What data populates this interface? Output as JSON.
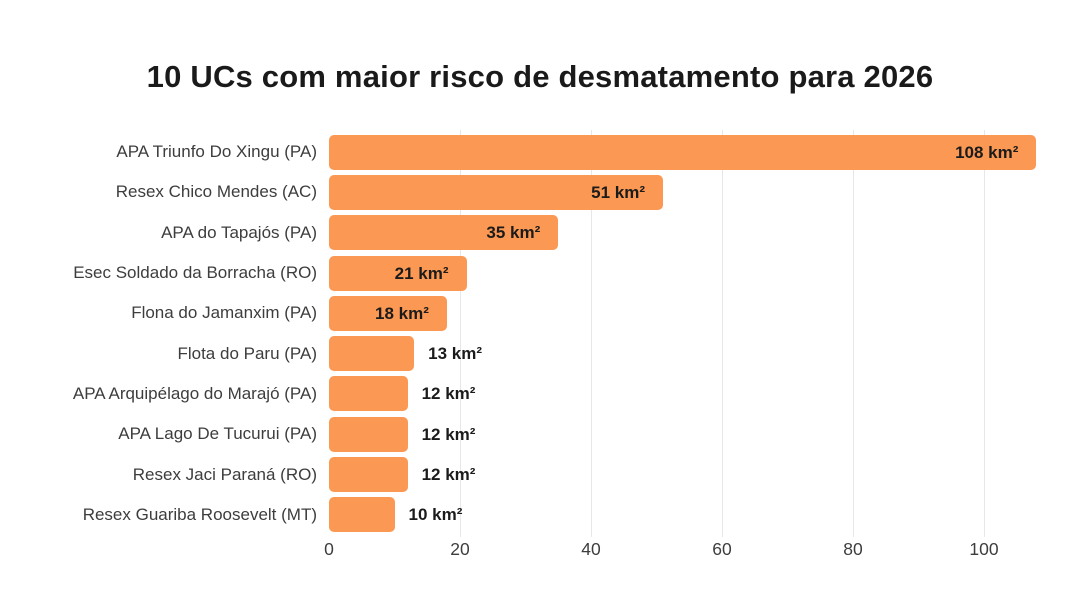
{
  "title": "10 UCs com maior risco de desmatamento para 2026",
  "colors": {
    "bar": "#FB9853",
    "title_text": "#1a1a1a",
    "category_text": "#3d3d3d",
    "value_text": "#1b1b1b",
    "tick_text": "#3d3d3d",
    "gridline": "#e7e7e7",
    "background": "#ffffff"
  },
  "chart_data": {
    "type": "bar",
    "orientation": "horizontal",
    "title": "10 UCs com maior risco de desmatamento para 2026",
    "xlabel": "",
    "ylabel": "",
    "unit": "km²",
    "categories": [
      "APA Triunfo Do Xingu (PA)",
      "Resex Chico Mendes (AC)",
      "APA do Tapajós (PA)",
      "Esec Soldado da Borracha (RO)",
      "Flona do Jamanxim (PA)",
      "Flota do Paru (PA)",
      "APA Arquipélago do Marajó (PA)",
      "APA Lago De Tucurui (PA)",
      "Resex Jaci Paraná (RO)",
      "Resex Guariba Roosevelt (MT)"
    ],
    "values": [
      108,
      51,
      35,
      21,
      18,
      13,
      12,
      12,
      12,
      10
    ],
    "value_labels": [
      "108 km²",
      "51 km²",
      "35 km²",
      "21 km²",
      "18 km²",
      "13 km²",
      "12 km²",
      "12 km²",
      "12 km²",
      "10 km²"
    ],
    "x_ticks": [
      0,
      20,
      40,
      60,
      80,
      100
    ],
    "xlim": [
      0,
      110
    ],
    "grid": true,
    "legend": null
  }
}
